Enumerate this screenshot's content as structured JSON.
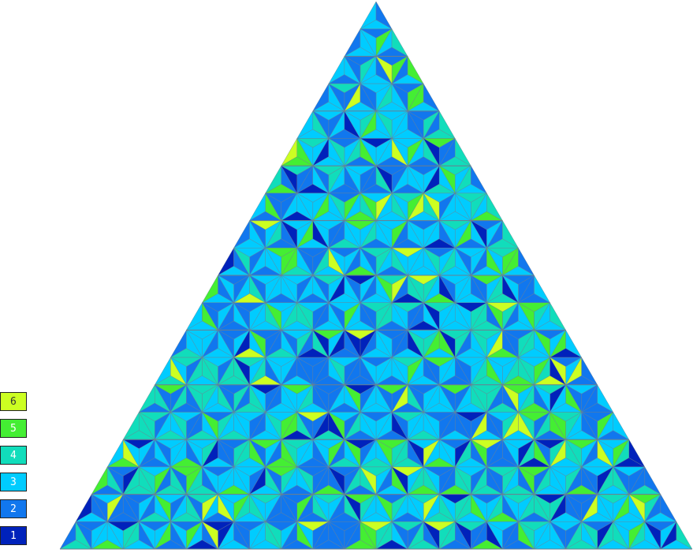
{
  "legend": {
    "items": [
      {
        "label": "6",
        "color": "#ccff22",
        "light": true
      },
      {
        "label": "5",
        "color": "#44ee33",
        "light": false
      },
      {
        "label": "4",
        "color": "#11ddbb",
        "light": false
      },
      {
        "label": "3",
        "color": "#00ccff",
        "light": false
      },
      {
        "label": "2",
        "color": "#1177ee",
        "light": false
      },
      {
        "label": "1",
        "color": "#0022bb",
        "light": false
      }
    ]
  },
  "palette": {
    "level_1": "#0022bb",
    "level_2": "#1177ee",
    "level_3": "#00ccff",
    "level_4": "#11ddbb",
    "level_5": "#44ee33",
    "level_6": "#ccff22",
    "edge": "#6b7f8f"
  }
}
